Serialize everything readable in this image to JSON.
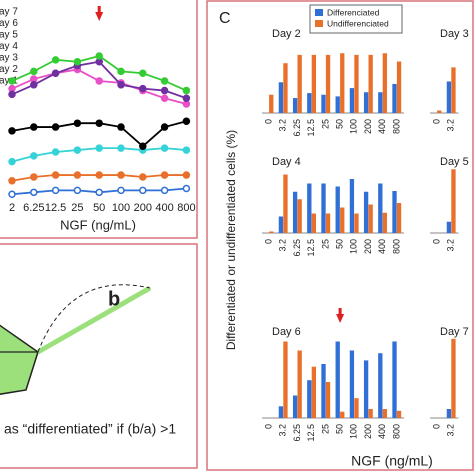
{
  "panel_label": "C",
  "c_ylabel": "Differentiated or undifferentiated cells (%)",
  "c_xlabel": "NGF (ng/mL)",
  "diagram": {
    "label_b": "b",
    "caption": "as “differentiated” if (b/a) >1"
  },
  "chart_data": [
    {
      "type": "line",
      "xlabel": "NGF (ng/mL)",
      "ylim": [
        0,
        100
      ],
      "categories": [
        "2",
        "6.25",
        "12.5",
        "25",
        "50",
        "100",
        "200",
        "400",
        "800"
      ],
      "annotation_arrow_at": "50",
      "series": [
        {
          "name": "ay 1",
          "color": "#2f6fd6",
          "values": [
            3,
            4,
            5,
            5,
            4,
            5,
            5,
            5,
            6
          ]
        },
        {
          "name": "ay 2",
          "color": "#e8702a",
          "values": [
            10,
            12,
            13,
            13,
            13,
            13,
            12,
            13,
            13
          ]
        },
        {
          "name": "ay 3",
          "color": "#35d3d8",
          "values": [
            20,
            23,
            25,
            26,
            27,
            27,
            26,
            27,
            26
          ]
        },
        {
          "name": "ay 4",
          "color": "#000000",
          "values": [
            36,
            38,
            38,
            40,
            40,
            38,
            28,
            38,
            41
          ]
        },
        {
          "name": "ay 5",
          "color": "#e84fc8",
          "values": [
            58,
            63,
            66,
            68,
            62,
            61,
            57,
            53,
            50
          ]
        },
        {
          "name": "ay 6",
          "color": "#7030a0",
          "values": [
            55,
            60,
            66,
            70,
            72,
            60,
            58,
            57,
            53
          ]
        },
        {
          "name": "ay 7",
          "color": "#33cc33",
          "values": [
            62,
            67,
            73,
            72,
            75,
            67,
            66,
            62,
            57
          ]
        }
      ]
    },
    {
      "type": "bar",
      "title": "Day 2",
      "ylim": [
        0,
        100
      ],
      "categories": [
        "0",
        "3.2",
        "6.25",
        "12.5",
        "25",
        "50",
        "100",
        "200",
        "400",
        "800"
      ],
      "series": [
        {
          "name": "Differenciated",
          "color": "#2f6fd6",
          "values": [
            0,
            37,
            18,
            24,
            22,
            20,
            30,
            25,
            25,
            35
          ]
        },
        {
          "name": "Undifferenciated",
          "color": "#e8702a",
          "values": [
            22,
            60,
            70,
            70,
            70,
            72,
            70,
            70,
            72,
            62
          ]
        }
      ]
    },
    {
      "type": "bar",
      "title": "Day 3",
      "ylim": [
        0,
        100
      ],
      "categories": [
        "0",
        "3.2"
      ],
      "series": [
        {
          "color": "#2f6fd6",
          "values": [
            0,
            38
          ]
        },
        {
          "color": "#e8702a",
          "values": [
            3,
            55
          ]
        }
      ]
    },
    {
      "type": "bar",
      "title": "Day 4",
      "ylim": [
        0,
        100
      ],
      "categories": [
        "0",
        "3.2",
        "6.25",
        "12.5",
        "25",
        "50",
        "100",
        "200",
        "400",
        "800"
      ],
      "series": [
        {
          "color": "#2f6fd6",
          "values": [
            0,
            22,
            55,
            66,
            66,
            62,
            72,
            55,
            66,
            56
          ]
        },
        {
          "color": "#e8702a",
          "values": [
            2,
            78,
            45,
            26,
            26,
            34,
            26,
            38,
            27,
            40
          ]
        }
      ]
    },
    {
      "type": "bar",
      "title": "Day 5",
      "ylim": [
        0,
        100
      ],
      "categories": [
        "0",
        "3.2"
      ],
      "series": [
        {
          "color": "#2f6fd6",
          "values": [
            0,
            15
          ]
        },
        {
          "color": "#e8702a",
          "values": [
            0,
            85
          ]
        }
      ]
    },
    {
      "type": "bar",
      "title": "Day 6",
      "ylim": [
        0,
        100
      ],
      "annotation_arrow_at": "50",
      "categories": [
        "0",
        "3.2",
        "6.25",
        "12.5",
        "25",
        "50",
        "100",
        "200",
        "400",
        "800"
      ],
      "series": [
        {
          "color": "#2f6fd6",
          "values": [
            0,
            13,
            25,
            42,
            60,
            85,
            75,
            64,
            72,
            85
          ]
        },
        {
          "color": "#e8702a",
          "values": [
            0,
            85,
            75,
            57,
            40,
            7,
            22,
            10,
            10,
            8
          ]
        }
      ]
    },
    {
      "type": "bar",
      "title": "Day 7",
      "ylim": [
        0,
        100
      ],
      "categories": [
        "0",
        "3.2"
      ],
      "series": [
        {
          "color": "#2f6fd6",
          "values": [
            0,
            10
          ]
        },
        {
          "color": "#e8702a",
          "values": [
            0,
            88
          ]
        }
      ]
    }
  ]
}
